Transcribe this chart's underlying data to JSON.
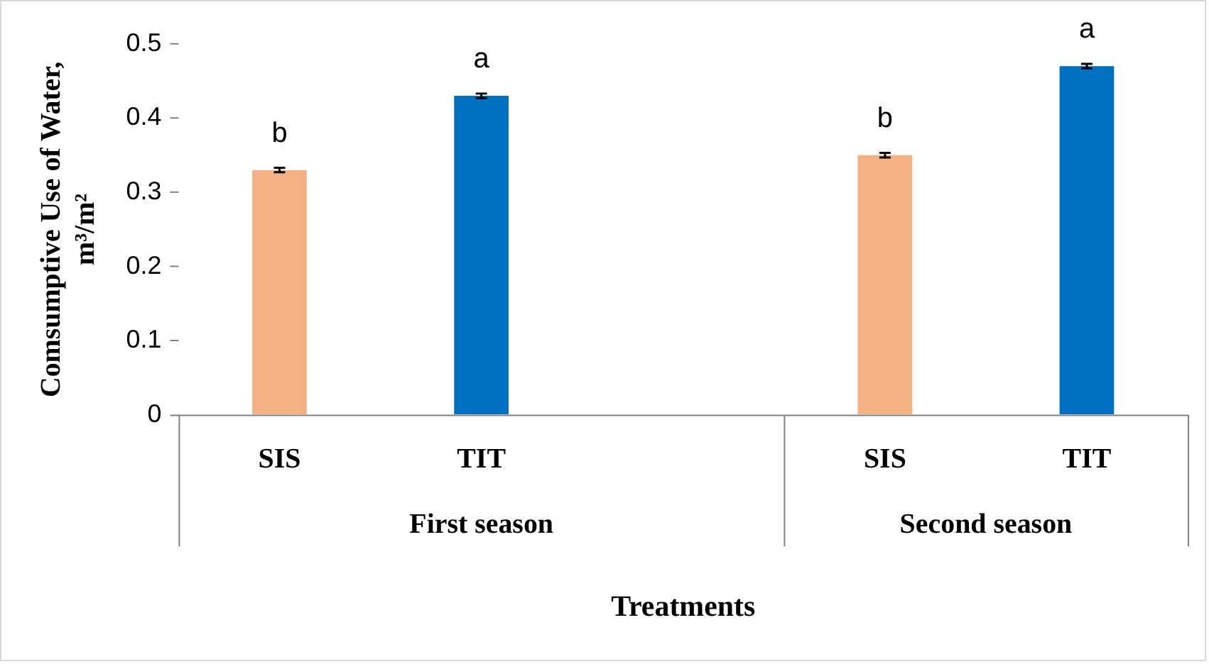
{
  "chart_data": {
    "type": "bar",
    "xlabel": "Treatments",
    "ylabel": "Comsumptive Use of Water, m³/m²",
    "categories": [
      "SIS",
      "TIT",
      null,
      "SIS",
      "TIT"
    ],
    "values": [
      0.33,
      0.43,
      null,
      0.35,
      0.47
    ],
    "colors": [
      "#f4b183",
      "#0070c0",
      "#0070c0",
      "#f4b183",
      "#0070c0"
    ],
    "errors": [
      0.003,
      0.003,
      null,
      0.003,
      0.003
    ],
    "value_labels": [
      "b",
      "a",
      null,
      "b",
      "a"
    ],
    "annotations": [
      "First season",
      "Second season"
    ],
    "ylim": [
      0,
      0.5
    ],
    "yticks": [
      0,
      0.1,
      0.2,
      0.3,
      0.4,
      0.5
    ],
    "grid": false,
    "legend": false
  }
}
